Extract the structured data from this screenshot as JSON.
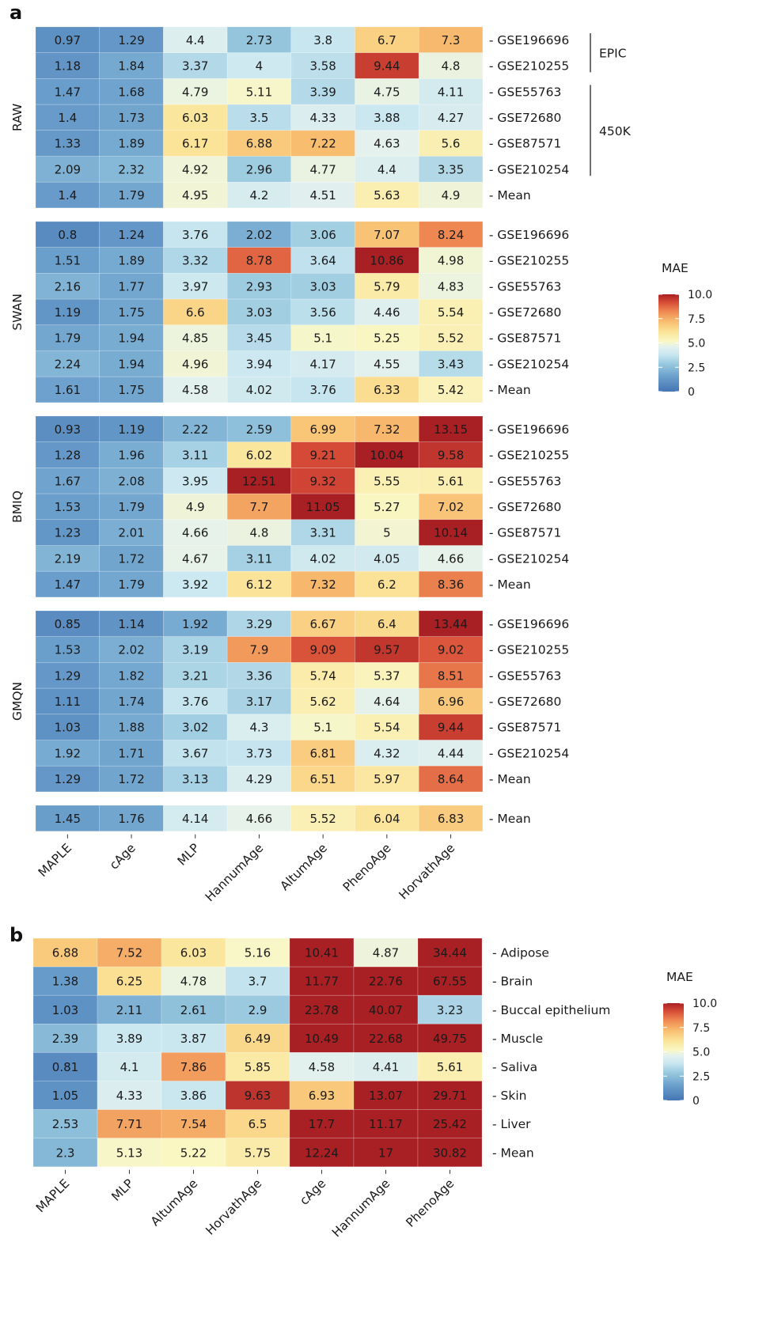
{
  "chart_data": [
    {
      "type": "heatmap",
      "panel": "a",
      "title": "",
      "columns": [
        "MAPLE",
        "cAge",
        "MLP",
        "HannumAge",
        "AltumAge",
        "PhenoAge",
        "HorvathAge"
      ],
      "color_scale": {
        "title": "MAE",
        "min": 0,
        "max": 10,
        "ticks": [
          "0",
          "2.5",
          "5.0",
          "7.5",
          "10.0"
        ],
        "palette": "RdYlBu_r"
      },
      "platform_brackets": [
        {
          "label": "EPIC",
          "datasets": [
            "GSE196696",
            "GSE210255"
          ]
        },
        {
          "label": "450K",
          "datasets": [
            "GSE55763",
            "GSE72680",
            "GSE87571",
            "GSE210254"
          ]
        }
      ],
      "groups": [
        {
          "name": "RAW",
          "rows": [
            {
              "label": "GSE196696",
              "values": [
                0.97,
                1.29,
                4.4,
                2.73,
                3.8,
                6.7,
                7.3
              ]
            },
            {
              "label": "GSE210255",
              "values": [
                1.18,
                1.84,
                3.37,
                4,
                3.58,
                9.44,
                4.8
              ]
            },
            {
              "label": "GSE55763",
              "values": [
                1.47,
                1.68,
                4.79,
                5.11,
                3.39,
                4.75,
                4.11
              ]
            },
            {
              "label": "GSE72680",
              "values": [
                1.4,
                1.73,
                6.03,
                3.5,
                4.33,
                3.88,
                4.27
              ]
            },
            {
              "label": "GSE87571",
              "values": [
                1.33,
                1.89,
                6.17,
                6.88,
                7.22,
                4.63,
                5.6
              ]
            },
            {
              "label": "GSE210254",
              "values": [
                2.09,
                2.32,
                4.92,
                2.96,
                4.77,
                4.4,
                3.35
              ]
            },
            {
              "label": "Mean",
              "values": [
                1.4,
                1.79,
                4.95,
                4.2,
                4.51,
                5.63,
                4.9
              ]
            }
          ]
        },
        {
          "name": "SWAN",
          "rows": [
            {
              "label": "GSE196696",
              "values": [
                0.8,
                1.24,
                3.76,
                2.02,
                3.06,
                7.07,
                8.24
              ]
            },
            {
              "label": "GSE210255",
              "values": [
                1.51,
                1.89,
                3.32,
                8.78,
                3.64,
                10.86,
                4.98
              ]
            },
            {
              "label": "GSE55763",
              "values": [
                2.16,
                1.77,
                3.97,
                2.93,
                3.03,
                5.79,
                4.83
              ]
            },
            {
              "label": "GSE72680",
              "values": [
                1.19,
                1.75,
                6.6,
                3.03,
                3.56,
                4.46,
                5.54
              ]
            },
            {
              "label": "GSE87571",
              "values": [
                1.79,
                1.94,
                4.85,
                3.45,
                5.1,
                5.25,
                5.52
              ]
            },
            {
              "label": "GSE210254",
              "values": [
                2.24,
                1.94,
                4.96,
                3.94,
                4.17,
                4.55,
                3.43
              ]
            },
            {
              "label": "Mean",
              "values": [
                1.61,
                1.75,
                4.58,
                4.02,
                3.76,
                6.33,
                5.42
              ]
            }
          ]
        },
        {
          "name": "BMIQ",
          "rows": [
            {
              "label": "GSE196696",
              "values": [
                0.93,
                1.19,
                2.22,
                2.59,
                6.99,
                7.32,
                13.15
              ]
            },
            {
              "label": "GSE210255",
              "values": [
                1.28,
                1.96,
                3.11,
                6.02,
                9.21,
                10.04,
                9.58
              ]
            },
            {
              "label": "GSE55763",
              "values": [
                1.67,
                2.08,
                3.95,
                12.51,
                9.32,
                5.55,
                5.61
              ]
            },
            {
              "label": "GSE72680",
              "values": [
                1.53,
                1.79,
                4.9,
                7.7,
                11.05,
                5.27,
                7.02
              ]
            },
            {
              "label": "GSE87571",
              "values": [
                1.23,
                2.01,
                4.66,
                4.8,
                3.31,
                5,
                10.14
              ]
            },
            {
              "label": "GSE210254",
              "values": [
                2.19,
                1.72,
                4.67,
                3.11,
                4.02,
                4.05,
                4.66
              ]
            },
            {
              "label": "Mean",
              "values": [
                1.47,
                1.79,
                3.92,
                6.12,
                7.32,
                6.2,
                8.36
              ]
            }
          ]
        },
        {
          "name": "GMQN",
          "rows": [
            {
              "label": "GSE196696",
              "values": [
                0.85,
                1.14,
                1.92,
                3.29,
                6.67,
                6.4,
                13.44
              ]
            },
            {
              "label": "GSE210255",
              "values": [
                1.53,
                2.02,
                3.19,
                7.9,
                9.09,
                9.57,
                9.02
              ]
            },
            {
              "label": "GSE55763",
              "values": [
                1.29,
                1.82,
                3.21,
                3.36,
                5.74,
                5.37,
                8.51
              ]
            },
            {
              "label": "GSE72680",
              "values": [
                1.11,
                1.74,
                3.76,
                3.17,
                5.62,
                4.64,
                6.96
              ]
            },
            {
              "label": "GSE87571",
              "values": [
                1.03,
                1.88,
                3.02,
                4.3,
                5.1,
                5.54,
                9.44
              ]
            },
            {
              "label": "GSE210254",
              "values": [
                1.92,
                1.71,
                3.67,
                3.73,
                6.81,
                4.32,
                4.44
              ]
            },
            {
              "label": "Mean",
              "values": [
                1.29,
                1.72,
                3.13,
                4.29,
                6.51,
                5.97,
                8.64
              ]
            }
          ]
        },
        {
          "name": "",
          "rows": [
            {
              "label": "Mean",
              "values": [
                1.45,
                1.76,
                4.14,
                4.66,
                5.52,
                6.04,
                6.83
              ]
            }
          ]
        }
      ]
    },
    {
      "type": "heatmap",
      "panel": "b",
      "title": "",
      "columns": [
        "MAPLE",
        "MLP",
        "AltumAge",
        "HorvathAge",
        "cAge",
        "HannumAge",
        "PhenoAge"
      ],
      "color_scale": {
        "title": "MAE",
        "min": 0,
        "max": 10,
        "ticks": [
          "0",
          "2.5",
          "5.0",
          "7.5",
          "10.0"
        ],
        "palette": "RdYlBu_r"
      },
      "rows": [
        {
          "label": "Adipose",
          "values": [
            6.88,
            7.52,
            6.03,
            5.16,
            10.41,
            4.87,
            34.44
          ]
        },
        {
          "label": "Brain",
          "values": [
            1.38,
            6.25,
            4.78,
            3.7,
            11.77,
            22.76,
            67.55
          ]
        },
        {
          "label": "Buccal epithelium",
          "values": [
            1.03,
            2.11,
            2.61,
            2.9,
            23.78,
            40.07,
            3.23
          ]
        },
        {
          "label": "Muscle",
          "values": [
            2.39,
            3.89,
            3.87,
            6.49,
            10.49,
            22.68,
            49.75
          ]
        },
        {
          "label": "Saliva",
          "values": [
            0.81,
            4.1,
            7.86,
            5.85,
            4.58,
            4.41,
            5.61
          ]
        },
        {
          "label": "Skin",
          "values": [
            1.05,
            4.33,
            3.86,
            9.63,
            6.93,
            13.07,
            29.71
          ]
        },
        {
          "label": "Liver",
          "values": [
            2.53,
            7.71,
            7.54,
            6.5,
            17.7,
            11.17,
            25.42
          ]
        },
        {
          "label": "Mean",
          "values": [
            2.3,
            5.13,
            5.22,
            5.75,
            12.24,
            17,
            30.82
          ]
        }
      ]
    }
  ],
  "panel_labels": [
    "a",
    "b"
  ],
  "colors": {
    "palette_stops": [
      "#4575b4",
      "#74add1",
      "#abd9e9",
      "#e0f3f8",
      "#ffffbf",
      "#fee090",
      "#fdae61",
      "#f46d43",
      "#d73027",
      "#a50026"
    ]
  }
}
